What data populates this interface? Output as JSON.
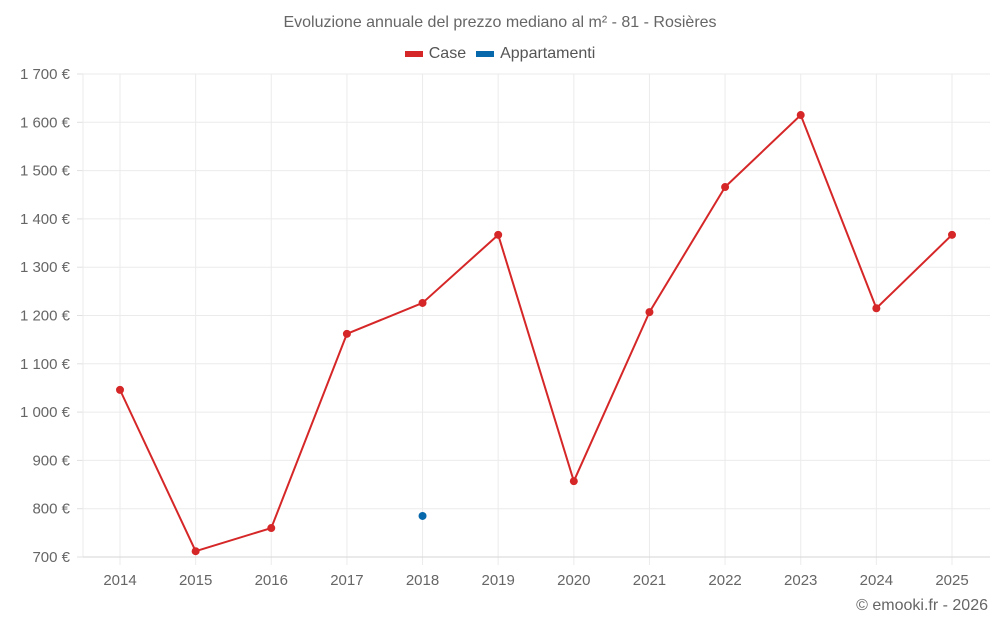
{
  "chart": {
    "title": "Evoluzione annuale del prezzo mediano al m² - 81 - Rosières",
    "credit": "© emooki.fr - 2026",
    "legend": [
      {
        "label": "Case",
        "color": "#d62728"
      },
      {
        "label": "Appartamenti",
        "color": "#0868ac"
      }
    ]
  },
  "chart_data": {
    "type": "line",
    "title": "Evoluzione annuale del prezzo mediano al m² - 81 - Rosières",
    "xlabel": "",
    "ylabel": "",
    "categories": [
      "2014",
      "2015",
      "2016",
      "2017",
      "2018",
      "2019",
      "2020",
      "2021",
      "2022",
      "2023",
      "2024",
      "2025"
    ],
    "y_tick_labels": [
      "700 €",
      "800 €",
      "900 €",
      "1 000 €",
      "1 100 €",
      "1 200 €",
      "1 300 €",
      "1 400 €",
      "1 500 €",
      "1 600 €",
      "1 700 €"
    ],
    "ylim": [
      700,
      1700
    ],
    "grid": true,
    "legend_position": "top",
    "series": [
      {
        "name": "Case",
        "color": "#d62728",
        "values": [
          1046,
          712,
          760,
          1162,
          1226,
          1367,
          857,
          1207,
          1466,
          1615,
          1215,
          1367
        ]
      },
      {
        "name": "Appartamenti",
        "color": "#0868ac",
        "values": [
          null,
          null,
          null,
          null,
          785,
          null,
          null,
          null,
          null,
          null,
          null,
          null
        ]
      }
    ]
  }
}
